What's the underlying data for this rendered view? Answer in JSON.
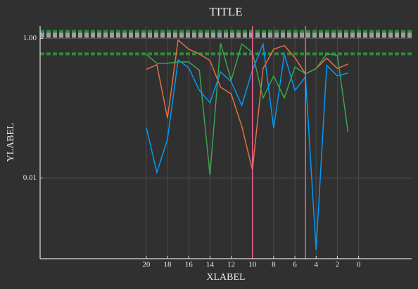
{
  "chart_data": {
    "type": "line",
    "title": "TITLE",
    "xlabel": "XLABEL",
    "ylabel": "YLABEL",
    "x": [
      20,
      19,
      18,
      17,
      16,
      15,
      14,
      13,
      12,
      11,
      10,
      9,
      8,
      7,
      6,
      5,
      4,
      3,
      2,
      1
    ],
    "series": [
      {
        "color": "#e26f46",
        "values": [
          0.36,
          0.42,
          0.072,
          0.95,
          0.7,
          0.6,
          0.48,
          0.2,
          0.16,
          0.055,
          0.013,
          0.37,
          0.7,
          0.79,
          0.53,
          0.31,
          0.37,
          0.52,
          0.37,
          0.43
        ]
      },
      {
        "color": "#3da44d",
        "values": [
          0.59,
          0.44,
          0.44,
          0.46,
          0.46,
          0.35,
          0.011,
          0.85,
          0.25,
          0.83,
          0.63,
          0.14,
          0.29,
          0.14,
          0.39,
          0.31,
          0.37,
          0.6,
          0.57,
          0.046
        ]
      },
      {
        "color": "#009af9",
        "values": [
          0.053,
          0.012,
          0.036,
          0.49,
          0.38,
          0.18,
          0.12,
          0.33,
          0.24,
          0.11,
          0.35,
          0.83,
          0.052,
          0.59,
          0.18,
          0.28,
          0.00093,
          0.41,
          0.29,
          0.32
        ]
      }
    ],
    "xlim": [
      30,
      -5
    ],
    "xticks": [
      20,
      18,
      16,
      14,
      12,
      10,
      8,
      6,
      4,
      2,
      0
    ],
    "ylim": [
      0.0007,
      1.5
    ],
    "log_y": true,
    "yticks": [
      {
        "value": 1,
        "label": "1.00"
      },
      {
        "value": 0.01,
        "label": "0.01"
      }
    ],
    "grid": true,
    "vlines": {
      "color": "#f06292",
      "values": [
        10,
        5
      ]
    },
    "hlines": [
      {
        "color": "#a0a0a0",
        "values": [
          1.18,
          1.07
        ]
      },
      {
        "color": "#2e8b3a",
        "values": [
          1.26,
          0.6
        ]
      }
    ]
  }
}
